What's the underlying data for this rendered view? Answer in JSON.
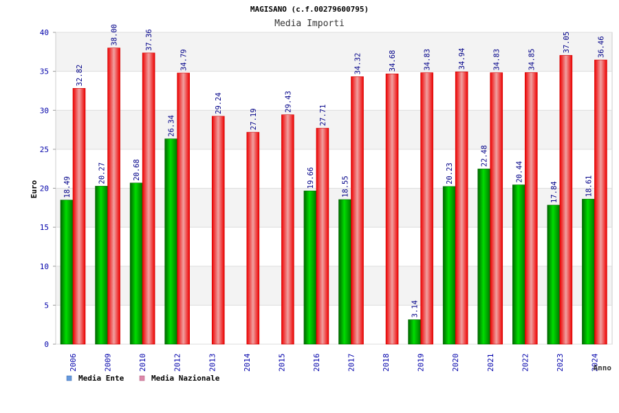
{
  "chart_data": {
    "type": "bar",
    "title": "MAGISANO (c.f.00279600795)",
    "subtitle": "Media Importi",
    "xlabel": "Anno",
    "ylabel": "Euro",
    "ylim": [
      0,
      40
    ],
    "yticks": [
      "0",
      "5",
      "10",
      "15",
      "20",
      "25",
      "30",
      "35",
      "40"
    ],
    "categories": [
      "2006",
      "2009",
      "2010",
      "2012",
      "2013",
      "2014",
      "2015",
      "2016",
      "2017",
      "2018",
      "2019",
      "2020",
      "2021",
      "2022",
      "2023",
      "2024"
    ],
    "series": [
      {
        "name": "Media Ente",
        "color": "#00aa00",
        "values": [
          18.49,
          20.27,
          20.68,
          26.34,
          null,
          null,
          null,
          19.66,
          18.55,
          null,
          3.14,
          20.23,
          22.48,
          20.44,
          17.84,
          18.61
        ],
        "labels": [
          "18.49",
          "20.27",
          "20.68",
          "26.34",
          "",
          "",
          "",
          "19.66",
          "18.55",
          "",
          "3.14",
          "20.23",
          "22.48",
          "20.44",
          "17.84",
          "18.61"
        ]
      },
      {
        "name": "Media Nazionale",
        "color": "#ee1c24",
        "values": [
          32.82,
          38.0,
          37.36,
          34.79,
          29.24,
          27.19,
          29.43,
          27.71,
          34.32,
          34.68,
          34.83,
          34.94,
          34.83,
          34.85,
          37.05,
          36.46
        ],
        "labels": [
          "32.82",
          "38.00",
          "37.36",
          "34.79",
          "29.24",
          "27.19",
          "29.43",
          "27.71",
          "34.32",
          "34.68",
          "34.83",
          "34.94",
          "34.83",
          "34.85",
          "37.05",
          "36.46"
        ]
      }
    ],
    "legend": [
      {
        "label": "Media Ente",
        "color": "#6699dd"
      },
      {
        "label": "Media Nazionale",
        "color": "#dd88aa"
      }
    ],
    "legend_position": "bottom-left",
    "grid": true
  }
}
